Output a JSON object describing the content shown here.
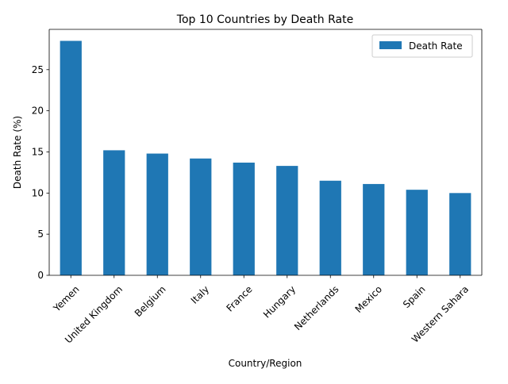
{
  "chart_data": {
    "type": "bar",
    "title": "Top 10 Countries by Death Rate",
    "xlabel": "Country/Region",
    "ylabel": "Death Rate (%)",
    "categories": [
      "Yemen",
      "United Kingdom",
      "Belgium",
      "Italy",
      "France",
      "Hungary",
      "Netherlands",
      "Mexico",
      "Spain",
      "Western Sahara"
    ],
    "series": [
      {
        "name": "Death Rate",
        "values": [
          28.5,
          15.2,
          14.8,
          14.2,
          13.7,
          13.3,
          11.5,
          11.1,
          10.4,
          10.0
        ],
        "color": "#1f77b4"
      }
    ],
    "ylim": [
      0,
      29.9
    ],
    "yticks": [
      0,
      5,
      10,
      15,
      20,
      25
    ],
    "grid": false,
    "legend_position": "top-right"
  }
}
